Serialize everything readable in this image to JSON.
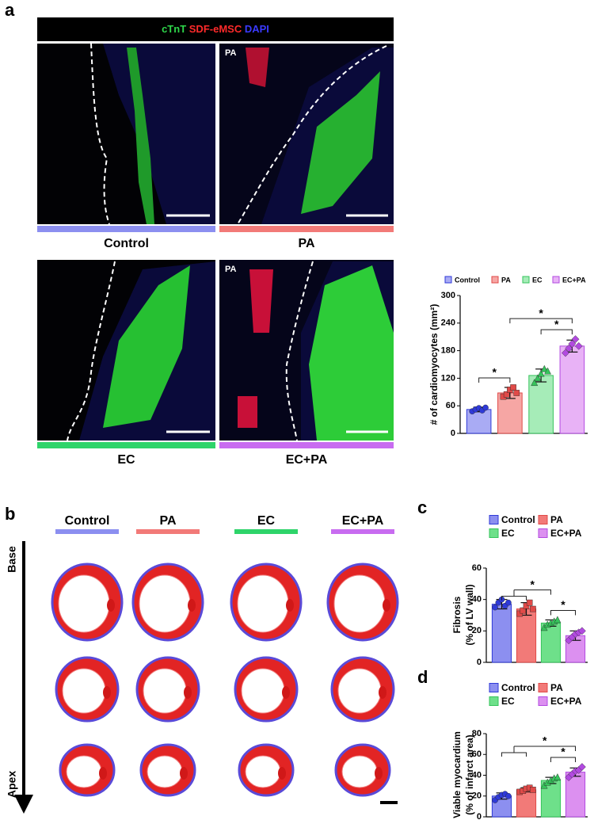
{
  "panel_labels": [
    "a",
    "b",
    "c",
    "d"
  ],
  "panel_a": {
    "stain": [
      {
        "text": "cTnT",
        "color": "#2ed64a"
      },
      {
        "text": "SDF-eMSC",
        "color": "#ff2a2a"
      },
      {
        "text": "DAPI",
        "color": "#3a3aff"
      }
    ],
    "groups": [
      "Control",
      "PA",
      "EC",
      "EC+PA"
    ],
    "colors": [
      "#8c8ff0",
      "#f27a78",
      "#2ed46a",
      "#c86cf0"
    ],
    "inset_labels": [
      "PA",
      "PA"
    ]
  },
  "panel_b": {
    "groups": [
      "Control",
      "PA",
      "EC",
      "EC+PA"
    ],
    "colors": [
      "#8c8ff0",
      "#f27a78",
      "#2ed46a",
      "#c86cf0"
    ],
    "axis": [
      "Base",
      "Apex"
    ]
  },
  "chart_data": [
    {
      "type": "bar",
      "y_label": [
        "# of cardiomyocytes (mm²)"
      ],
      "categories": [
        "Control",
        "PA",
        "EC",
        "EC+PA"
      ],
      "values": [
        52,
        88,
        126,
        190
      ],
      "errors": [
        5,
        12,
        14,
        13
      ],
      "points": [
        [
          48,
          52,
          55,
          50,
          56
        ],
        [
          80,
          85,
          95,
          100,
          88
        ],
        [
          110,
          120,
          130,
          140,
          135
        ],
        [
          175,
          185,
          195,
          205,
          190
        ]
      ],
      "colors": [
        "#a9abf4",
        "#f6a6a4",
        "#a6ecb8",
        "#e8b2f6"
      ],
      "point_colors": [
        "#2f3ad8",
        "#e04a48",
        "#36c45c",
        "#b24ae0"
      ],
      "ylim": [
        0,
        300
      ],
      "yticks": [
        0,
        60,
        120,
        180,
        240,
        300
      ],
      "annotations": [
        {
          "text": "*",
          "left": [
            "Control"
          ],
          "right": [
            "PA"
          ]
        },
        {
          "text": "*",
          "left": [
            "EC"
          ],
          "right": [
            "EC+PA"
          ]
        },
        {
          "text": "*",
          "left": [
            "PA"
          ],
          "right": [
            "EC+PA"
          ]
        }
      ]
    },
    {
      "type": "bar",
      "y_label": [
        "Fibrosis",
        "(% of LV wall)"
      ],
      "categories": [
        "Control",
        "PA",
        "EC",
        "EC+PA"
      ],
      "values": [
        37,
        34,
        25,
        17
      ],
      "errors": [
        3,
        4,
        2,
        3
      ],
      "points": [
        [
          35,
          38,
          40,
          36,
          38
        ],
        [
          31,
          33,
          36,
          38,
          34
        ],
        [
          22,
          24,
          25,
          26,
          27
        ],
        [
          14,
          16,
          18,
          19,
          20
        ]
      ],
      "colors": [
        "#8c8ff0",
        "#f27a78",
        "#6ee08a",
        "#dc90f0"
      ],
      "point_colors": [
        "#2f3ad8",
        "#e04a48",
        "#36c45c",
        "#b24ae0"
      ],
      "ylim": [
        0,
        60
      ],
      "yticks": [
        0,
        20,
        40,
        60
      ],
      "annotations": [
        {
          "text": "*",
          "left": [
            "EC"
          ],
          "right": [
            "EC+PA"
          ]
        },
        {
          "text": "*",
          "left": [
            "Control",
            "PA"
          ],
          "right": [
            "EC"
          ]
        }
      ]
    },
    {
      "type": "bar",
      "y_label": [
        "Viable myocardium",
        "(% of infarct area)"
      ],
      "categories": [
        "Control",
        "PA",
        "EC",
        "EC+PA"
      ],
      "values": [
        20,
        26,
        35,
        43
      ],
      "errors": [
        3,
        2,
        3,
        4
      ],
      "points": [
        [
          16,
          19,
          21,
          22,
          20
        ],
        [
          24,
          25,
          27,
          28,
          26
        ],
        [
          30,
          33,
          35,
          37,
          38
        ],
        [
          38,
          41,
          44,
          45,
          48
        ]
      ],
      "colors": [
        "#8c8ff0",
        "#f27a78",
        "#6ee08a",
        "#dc90f0"
      ],
      "point_colors": [
        "#2f3ad8",
        "#e04a48",
        "#36c45c",
        "#b24ae0"
      ],
      "ylim": [
        0,
        80
      ],
      "yticks": [
        0,
        20,
        40,
        60,
        80
      ],
      "annotations": [
        {
          "text": "*",
          "left": [
            "EC"
          ],
          "right": [
            "EC+PA"
          ]
        },
        {
          "text": "*",
          "left": [
            "Control",
            "PA"
          ],
          "right": [
            "EC+PA"
          ]
        }
      ]
    }
  ]
}
